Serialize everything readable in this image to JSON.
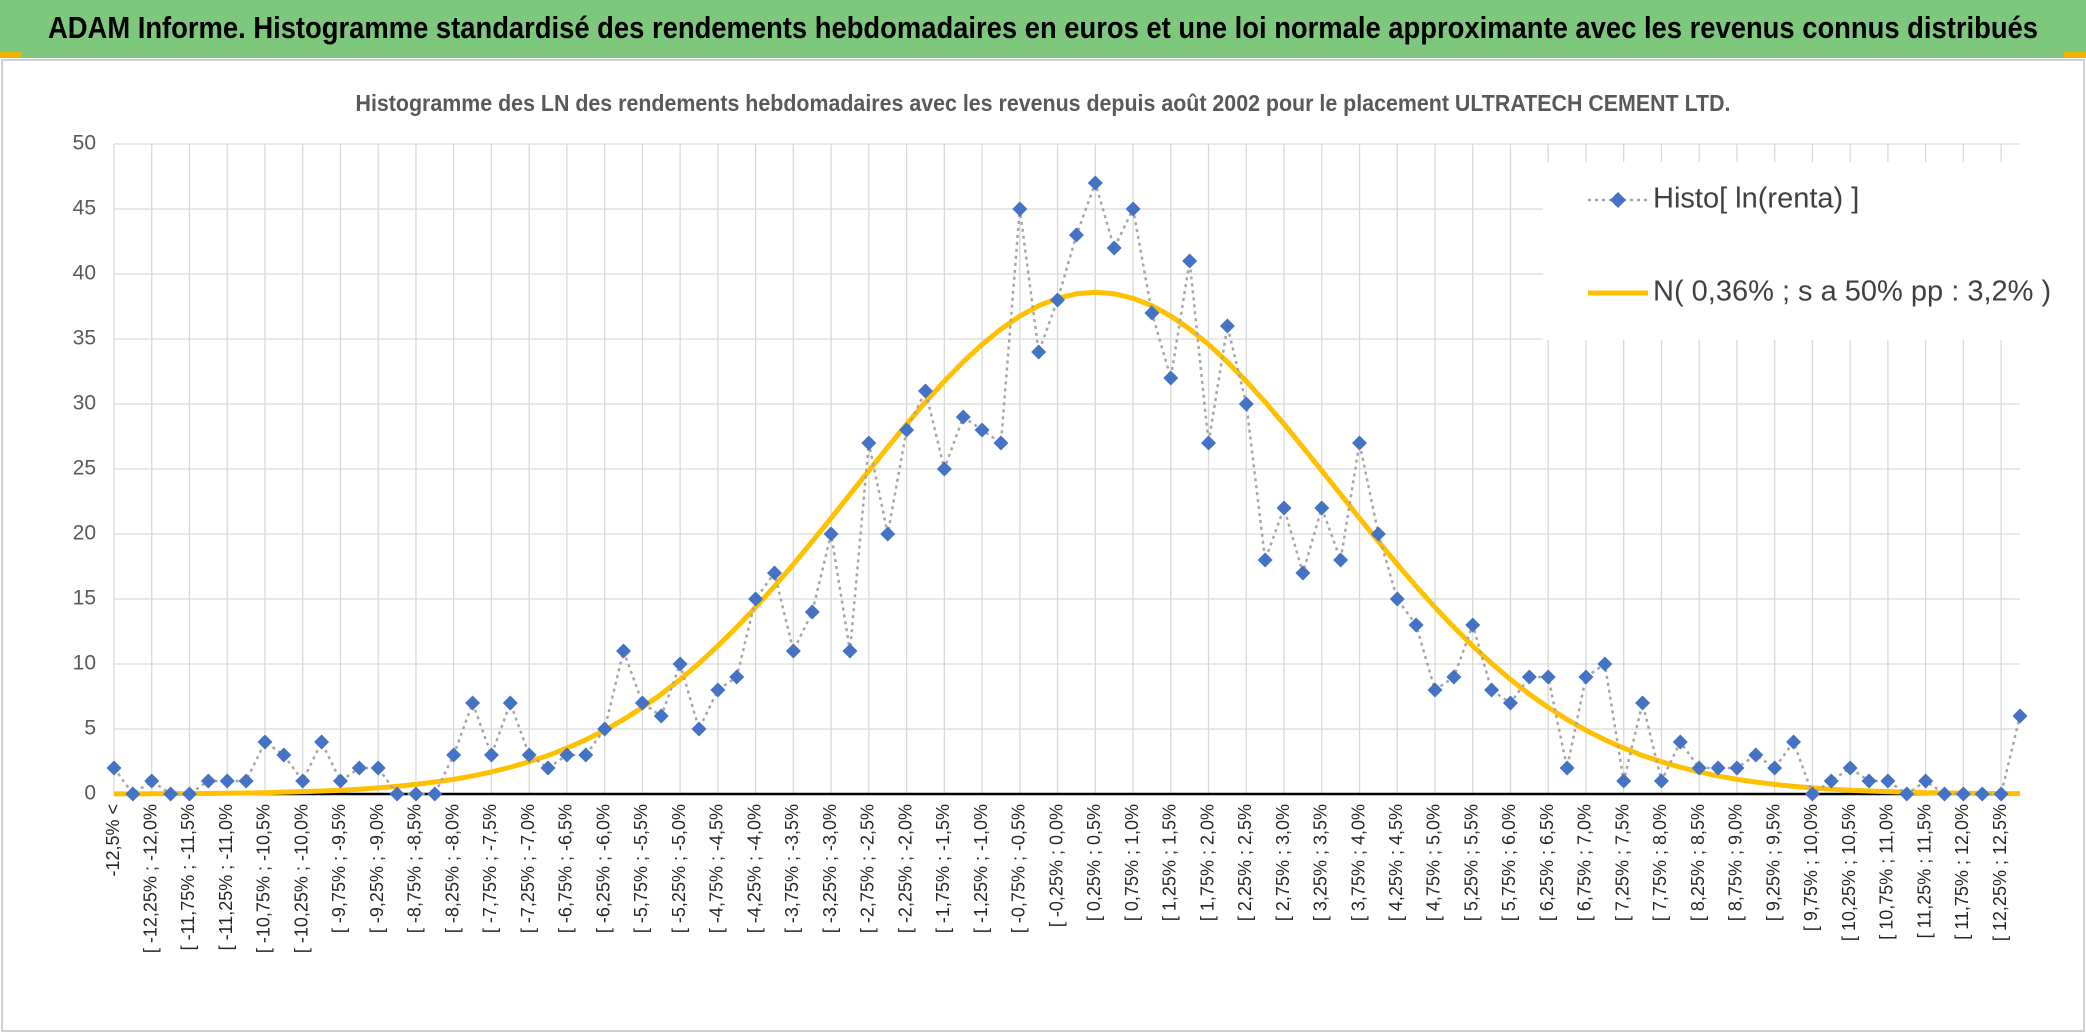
{
  "header": {
    "title": "ADAM Informe. Histogramme standardisé des rendements hebdomadaires en euros et une loi normale approximante avec les revenus connus distribués"
  },
  "chart_data": {
    "type": "line",
    "title": "Histogramme des LN des rendements hebdomadaires avec les revenus depuis août 2002 pour le placement ULTRATECH  CEMENT LTD.",
    "categories": [
      "-12,5% <",
      null,
      "[ -12,25% ; -12,0%",
      null,
      "[ -11,75% ; -11,5%",
      null,
      "[ -11,25% ; -11,0%",
      null,
      "[ -10,75% ; -10,5%",
      null,
      "[ -10,25% ; -10,0%",
      null,
      "[ -9,75% ; -9,5%",
      null,
      "[ -9,25% ; -9,0%",
      null,
      "[ -8,75% ; -8,5%",
      null,
      "[ -8,25% ; -8,0%",
      null,
      "[ -7,75% ; -7,5%",
      null,
      "[ -7,25% ; -7,0%",
      null,
      "[ -6,75% ; -6,5%",
      null,
      "[ -6,25% ; -6,0%",
      null,
      "[ -5,75% ; -5,5%",
      null,
      "[ -5,25% ; -5,0%",
      null,
      "[ -4,75% ; -4,5%",
      null,
      "[ -4,25% ; -4,0%",
      null,
      "[ -3,75% ; -3,5%",
      null,
      "[ -3,25% ; -3,0%",
      null,
      "[ -2,75% ; -2,5%",
      null,
      "[ -2,25% ; -2,0%",
      null,
      "[ -1,75% ; -1,5%",
      null,
      "[ -1,25% ; -1,0%",
      null,
      "[ -0,75% ; -0,5%",
      null,
      "[ -0,25% ; 0,0%",
      null,
      "[ 0,25% ; 0,5%",
      null,
      "[ 0,75% ; 1,0%",
      null,
      "[ 1,25% ; 1,5%",
      null,
      "[ 1,75% ; 2,0%",
      null,
      "[ 2,25% ; 2,5%",
      null,
      "[ 2,75% ; 3,0%",
      null,
      "[ 3,25% ; 3,5%",
      null,
      "[ 3,75% ; 4,0%",
      null,
      "[ 4,25% ; 4,5%",
      null,
      "[ 4,75% ; 5,0%",
      null,
      "[ 5,25% ; 5,5%",
      null,
      "[ 5,75% ; 6,0%",
      null,
      "[ 6,25% ; 6,5%",
      null,
      "[ 6,75% ; 7,0%",
      null,
      "[ 7,25% ; 7,5%",
      null,
      "[ 7,75% ; 8,0%",
      null,
      "[ 8,25% ; 8,5%",
      null,
      "[ 8,75% ; 9,0%",
      null,
      "[ 9,25% ; 9,5%",
      null,
      "[ 9,75% ; 10,0%",
      null,
      "[ 10,25% ; 10,5%",
      null,
      "[ 10,75% ; 11,0%",
      null,
      "[ 11,25% ; 11,5%",
      null,
      "[ 11,75% ; 12,0%",
      null,
      "[ 12,25% ; 12,5%",
      null
    ],
    "series": [
      {
        "name": "Histo[ ln(renta) ]",
        "color": "#4472c4",
        "line_color": "#a6a6a6",
        "dash": "dotted",
        "marker": "diamond",
        "values": [
          2,
          0,
          1,
          0,
          0,
          1,
          1,
          1,
          4,
          3,
          1,
          4,
          1,
          2,
          2,
          0,
          0,
          0,
          3,
          7,
          3,
          7,
          3,
          2,
          3,
          3,
          5,
          11,
          7,
          6,
          10,
          5,
          8,
          9,
          15,
          17,
          11,
          14,
          20,
          11,
          27,
          20,
          28,
          31,
          25,
          29,
          28,
          27,
          45,
          34,
          38,
          43,
          47,
          42,
          45,
          37,
          32,
          41,
          27,
          36,
          30,
          18,
          22,
          17,
          22,
          18,
          27,
          20,
          15,
          13,
          8,
          9,
          13,
          8,
          7,
          9,
          9,
          2,
          9,
          10,
          1,
          7,
          1,
          4,
          2,
          2,
          2,
          3,
          2,
          4,
          0,
          1,
          2,
          1,
          1,
          0,
          1,
          0,
          0,
          0,
          0,
          6
        ]
      },
      {
        "name": "N( 0,36% ; s a 50% pp : 3,2% )",
        "color": "#ffc000",
        "line_color": "#ffc000",
        "dash": "solid",
        "marker": "none",
        "values": [
          0.01,
          0.01,
          0.02,
          0.03,
          0.03,
          0.05,
          0.06,
          0.08,
          0.1,
          0.14,
          0.18,
          0.23,
          0.29,
          0.37,
          0.47,
          0.59,
          0.74,
          0.92,
          1.13,
          1.39,
          1.7,
          2.06,
          2.48,
          2.96,
          3.53,
          4.17,
          4.9,
          5.73,
          6.66,
          7.68,
          8.81,
          10.05,
          11.39,
          12.83,
          14.36,
          15.98,
          17.67,
          19.43,
          21.22,
          23.05,
          24.87,
          26.68,
          28.45,
          30.15,
          31.75,
          33.24,
          34.58,
          35.76,
          36.76,
          37.56,
          38.13,
          38.48,
          38.6,
          38.48,
          38.13,
          37.56,
          36.76,
          35.76,
          34.58,
          33.24,
          31.75,
          30.15,
          28.45,
          26.68,
          24.87,
          23.05,
          21.22,
          19.43,
          17.67,
          15.98,
          14.36,
          12.83,
          11.39,
          10.05,
          8.81,
          7.68,
          6.66,
          5.73,
          4.9,
          4.17,
          3.53,
          2.96,
          2.48,
          2.06,
          1.7,
          1.39,
          1.13,
          0.92,
          0.74,
          0.59,
          0.47,
          0.37,
          0.29,
          0.23,
          0.18,
          0.14,
          0.1,
          0.08,
          0.06,
          0.05,
          0.03,
          0.03
        ]
      }
    ],
    "ylim": [
      0,
      50
    ],
    "yticks": [
      0,
      5,
      10,
      15,
      20,
      25,
      30,
      35,
      40,
      45,
      50
    ],
    "grid": true,
    "legend": "top right"
  }
}
